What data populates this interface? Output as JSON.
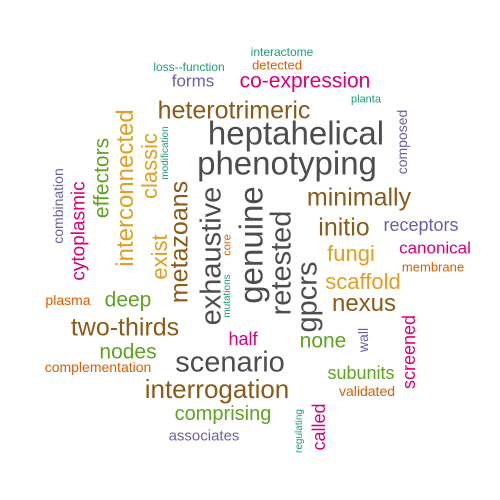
{
  "words": [
    {
      "text": "heptahelical",
      "color": "#4d4d4d"
    },
    {
      "text": "phenotyping",
      "color": "#4d4d4d"
    },
    {
      "text": "genuine",
      "color": "#4d4d4d"
    },
    {
      "text": "retested",
      "color": "#4d4d4d"
    },
    {
      "text": "exhaustive",
      "color": "#4d4d4d"
    },
    {
      "text": "gpcrs",
      "color": "#4d4d4d"
    },
    {
      "text": "scenario",
      "color": "#4d4d4d"
    },
    {
      "text": "interrogation",
      "color": "#8a5a19"
    },
    {
      "text": "two-thirds",
      "color": "#8a5a19"
    },
    {
      "text": "metazoans",
      "color": "#8a5a19"
    },
    {
      "text": "heterotrimeric",
      "color": "#8a5a19"
    },
    {
      "text": "minimally",
      "color": "#8a5a19"
    },
    {
      "text": "initio",
      "color": "#8a5a19"
    },
    {
      "text": "nexus",
      "color": "#8a5a19"
    },
    {
      "text": "interconnected",
      "color": "#e0a021"
    },
    {
      "text": "exist",
      "color": "#e0a021"
    },
    {
      "text": "classic",
      "color": "#e0a021"
    },
    {
      "text": "fungi",
      "color": "#e0a021"
    },
    {
      "text": "scaffold",
      "color": "#e0a021"
    },
    {
      "text": "co-expression",
      "color": "#d6007a"
    },
    {
      "text": "cytoplasmic",
      "color": "#d6007a"
    },
    {
      "text": "canonical",
      "color": "#d6007a"
    },
    {
      "text": "screened",
      "color": "#d6007a"
    },
    {
      "text": "half",
      "color": "#d6007a"
    },
    {
      "text": "called",
      "color": "#d6007a"
    },
    {
      "text": "effectors",
      "color": "#5fa322"
    },
    {
      "text": "deep",
      "color": "#5fa322"
    },
    {
      "text": "nodes",
      "color": "#5fa322"
    },
    {
      "text": "none",
      "color": "#5fa322"
    },
    {
      "text": "subunits",
      "color": "#5fa322"
    },
    {
      "text": "comprising",
      "color": "#5fa322"
    },
    {
      "text": "receptors",
      "color": "#6b5fa6"
    },
    {
      "text": "forms",
      "color": "#6b5fa6"
    },
    {
      "text": "composed",
      "color": "#6b5fa6"
    },
    {
      "text": "combination",
      "color": "#6b5fa6"
    },
    {
      "text": "wall",
      "color": "#6b5fa6"
    },
    {
      "text": "associates",
      "color": "#6b5fa6"
    },
    {
      "text": "plasma",
      "color": "#d95f02"
    },
    {
      "text": "complementation",
      "color": "#d95f02"
    },
    {
      "text": "membrane",
      "color": "#d95f02"
    },
    {
      "text": "validated",
      "color": "#d95f02"
    },
    {
      "text": "detected",
      "color": "#d95f02"
    },
    {
      "text": "core",
      "color": "#d95f02"
    },
    {
      "text": "interactome",
      "color": "#1b9e77"
    },
    {
      "text": "loss--function",
      "color": "#1b9e77"
    },
    {
      "text": "planta",
      "color": "#1b9e77"
    },
    {
      "text": "modification",
      "color": "#1b9e77"
    },
    {
      "text": "mutations",
      "color": "#1b9e77"
    },
    {
      "text": "regulating",
      "color": "#1b9e77"
    }
  ]
}
